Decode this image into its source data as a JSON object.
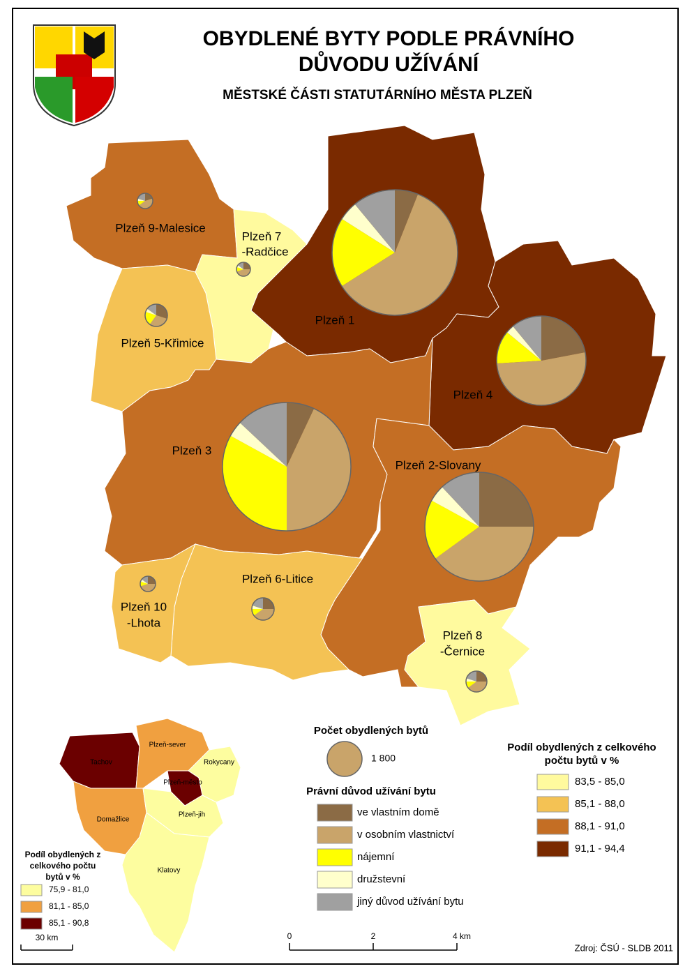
{
  "title": [
    "OBYDLENÉ BYTY PODLE PRÁVNÍHO",
    "DŮVODU UŽÍVÁNÍ"
  ],
  "subtitle": "MĚSTSKÉ ČÁSTI STATUTÁRNÍHO MĚSTA PLZEŇ",
  "categories": [
    "ve vlastním domě",
    "v osobním vlastnictví",
    "nájemní",
    "družstevní",
    "jiný důvod užívání bytu"
  ],
  "category_colors": [
    "#8b6b45",
    "#c9a46a",
    "#ffff00",
    "#ffffcc",
    "#a0a0a0"
  ],
  "category_legend_title": "Právní důvod užívání bytu",
  "size_legend": {
    "title": "Počet obydlených bytů",
    "count": {
      "value": 1800,
      "label": "1 800"
    }
  },
  "classes": {
    "title": [
      "Podíl obydlených z celkového",
      "počtu bytů v %"
    ],
    "labels": [
      "83,5 - 85,0",
      "85,1 - 88,0",
      "88,1 - 91,0",
      "91,1 - 94,4"
    ],
    "colors": [
      "#fffa9e",
      "#f4c254",
      "#c46e24",
      "#7a2a00"
    ]
  },
  "districts": [
    {
      "label": [
        "Plzeň 9-Malesice"
      ],
      "class": 2,
      "count": 350,
      "shares": [
        20,
        45,
        10,
        5,
        20
      ]
    },
    {
      "label": [
        "Plzeň 7",
        "-Radčice"
      ],
      "class": 0,
      "count": 290,
      "shares": [
        25,
        45,
        10,
        5,
        15
      ]
    },
    {
      "label": [
        "Plzeň 5-Křimice"
      ],
      "class": 1,
      "count": 740,
      "shares": [
        30,
        30,
        20,
        5,
        15
      ]
    },
    {
      "label": [
        "Plzeň 1"
      ],
      "class": 3,
      "count": 23300,
      "shares": [
        6,
        60,
        18,
        5,
        11
      ]
    },
    {
      "label": [
        "Plzeň 4"
      ],
      "class": 3,
      "count": 11800,
      "shares": [
        22,
        52,
        12,
        3,
        11
      ]
    },
    {
      "label": [
        "Plzeň 3"
      ],
      "class": 2,
      "count": 24400,
      "shares": [
        7,
        43,
        33,
        4,
        13
      ]
    },
    {
      "label": [
        "Plzeň 2-Slovany"
      ],
      "class": 2,
      "count": 17500,
      "shares": [
        25,
        40,
        18,
        5,
        12
      ]
    },
    {
      "label": [
        "Plzeň 6-Litice"
      ],
      "class": 1,
      "count": 740,
      "shares": [
        25,
        40,
        10,
        5,
        20
      ]
    },
    {
      "label": [
        "Plzeň 10",
        "-Lhota"
      ],
      "class": 1,
      "count": 350,
      "shares": [
        25,
        45,
        10,
        5,
        15
      ]
    },
    {
      "label": [
        "Plzeň 8",
        "-Černice"
      ],
      "class": 0,
      "count": 650,
      "shares": [
        25,
        40,
        10,
        5,
        20
      ]
    }
  ],
  "inset": {
    "title": [
      "Podíl obydlených z",
      "celkového počtu",
      "bytů v %"
    ],
    "labels": [
      "75,9 - 81,0",
      "81,1 - 85,0",
      "85,1 - 90,8"
    ],
    "colors": [
      "#fdfd9f",
      "#f0a040",
      "#6b0000"
    ],
    "regions": [
      {
        "label": "Tachov",
        "class": 2
      },
      {
        "label": "Plzeň-sever",
        "class": 1
      },
      {
        "label": "Rokycany",
        "class": 0
      },
      {
        "label": "Plzeň-město",
        "class": 2
      },
      {
        "label": "Domažlice",
        "class": 1
      },
      {
        "label": "Plzeň-jih",
        "class": 0
      },
      {
        "label": "Klatovy",
        "class": 0
      }
    ],
    "scale": "30 km"
  },
  "scale": [
    "0",
    "2",
    "4 km"
  ],
  "source": "Zdroj: ČSÚ - SLDB 2011"
}
